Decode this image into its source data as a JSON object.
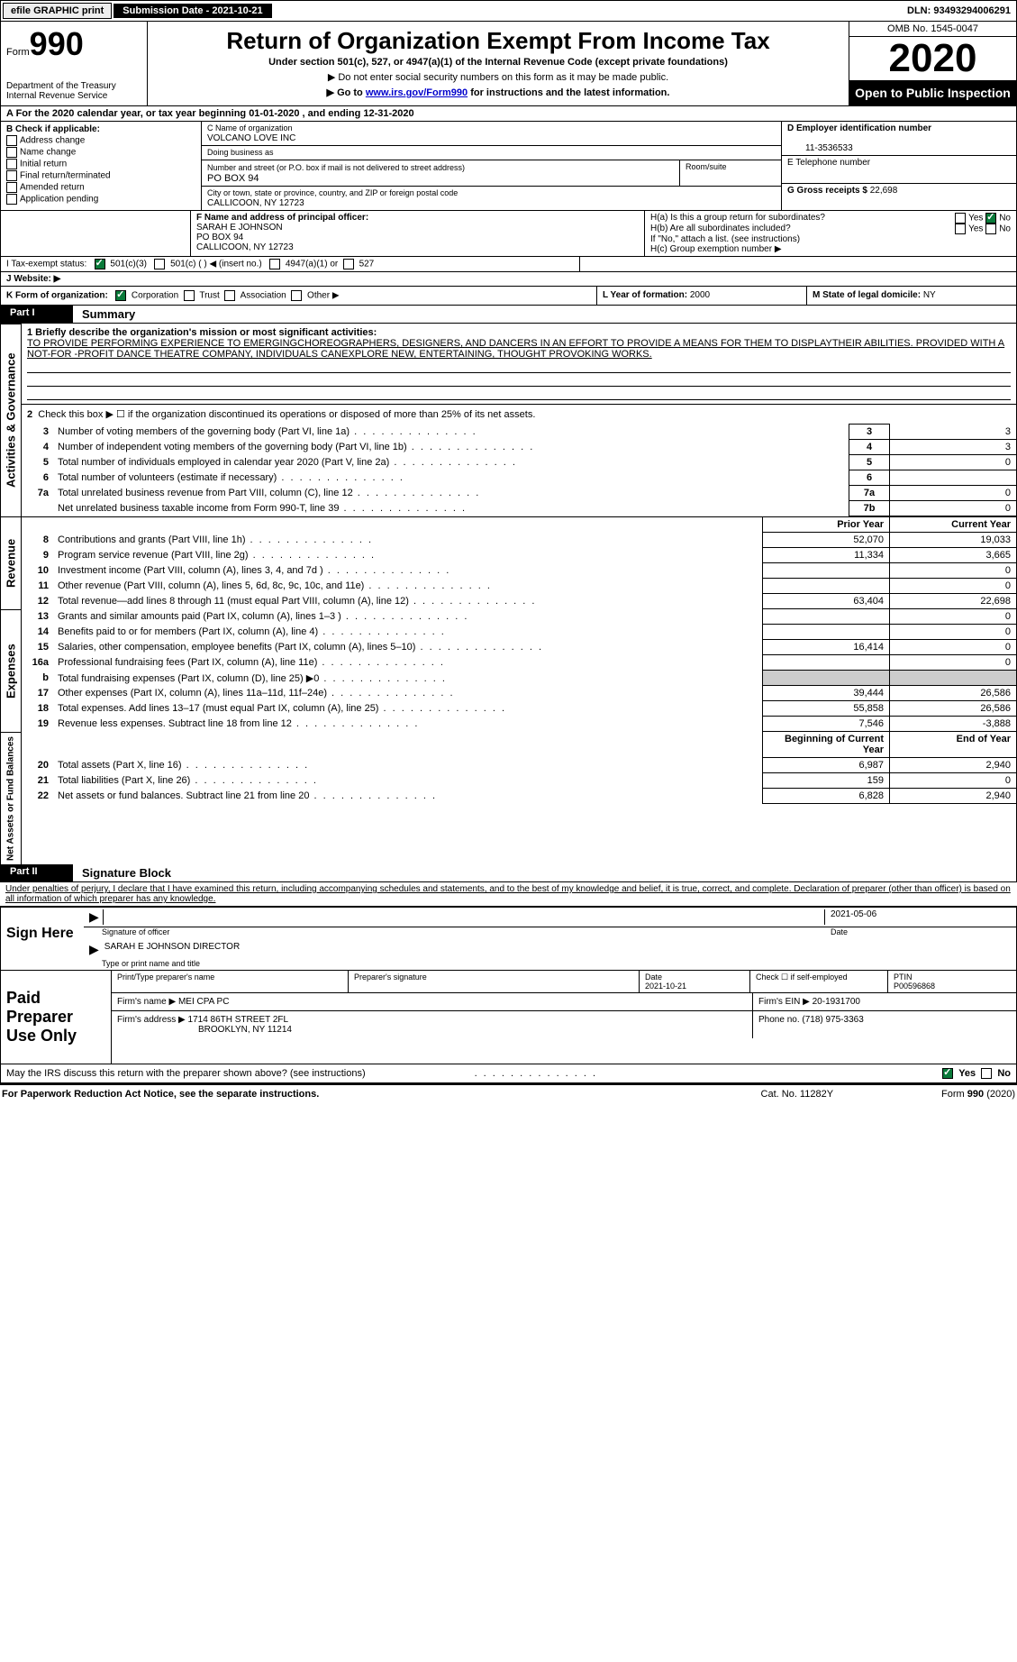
{
  "topbar": {
    "efile": "efile GRAPHIC print",
    "subdate_label": "Submission Date - ",
    "subdate": "2021-10-21",
    "dln_label": "DLN: ",
    "dln": "93493294006291"
  },
  "header": {
    "form_label": "Form",
    "form_num": "990",
    "dept": "Department of the Treasury\nInternal Revenue Service",
    "title": "Return of Organization Exempt From Income Tax",
    "subtitle": "Under section 501(c), 527, or 4947(a)(1) of the Internal Revenue Code (except private foundations)",
    "note1": "▶ Do not enter social security numbers on this form as it may be made public.",
    "note2_pre": "▶ Go to ",
    "note2_link": "www.irs.gov/Form990",
    "note2_post": " for instructions and the latest information.",
    "omb": "OMB No. 1545-0047",
    "year": "2020",
    "public": "Open to Public Inspection"
  },
  "periodA": "A For the 2020 calendar year, or tax year beginning 01-01-2020    , and ending 12-31-2020",
  "boxB": {
    "label": "B Check if applicable:",
    "items": [
      "Address change",
      "Name change",
      "Initial return",
      "Final return/terminated",
      "Amended return",
      "Application pending"
    ]
  },
  "boxC": {
    "c_label": "C Name of organization",
    "org": "VOLCANO LOVE INC",
    "dba_label": "Doing business as",
    "addr_label": "Number and street (or P.O. box if mail is not delivered to street address)",
    "room_label": "Room/suite",
    "addr": "PO BOX 94",
    "city_label": "City or town, state or province, country, and ZIP or foreign postal code",
    "city": "CALLICOON, NY  12723"
  },
  "boxD": {
    "d_label": "D Employer identification number",
    "ein": "11-3536533",
    "e_label": "E Telephone number",
    "g_label": "G Gross receipts $ ",
    "g_val": "22,698"
  },
  "boxF": {
    "f_label": "F  Name and address of principal officer:",
    "name": "SARAH E JOHNSON",
    "addr": "PO BOX 94",
    "city": "CALLICOON, NY  12723"
  },
  "boxH": {
    "ha": "H(a)  Is this a group return for subordinates?",
    "hb": "H(b)  Are all subordinates included?",
    "hnote": "If \"No,\" attach a list. (see instructions)",
    "hc": "H(c)  Group exemption number ▶",
    "yes": "Yes",
    "no": "No"
  },
  "lineI": {
    "label": "I    Tax-exempt status:",
    "opts": [
      "501(c)(3)",
      "501(c) (  ) ◀ (insert no.)",
      "4947(a)(1) or",
      "527"
    ]
  },
  "lineJ": "J   Website: ▶",
  "lineK": {
    "label": "K Form of organization:",
    "opts": [
      "Corporation",
      "Trust",
      "Association",
      "Other ▶"
    ]
  },
  "lineL": {
    "label": "L Year of formation: ",
    "val": "2000"
  },
  "lineM": {
    "label": "M State of legal domicile: ",
    "val": "NY"
  },
  "part1": {
    "num": "Part I",
    "title": "Summary"
  },
  "summary": {
    "l1_label": "1  Briefly describe the organization's mission or most significant activities:",
    "l1_text": "TO PROVIDE PERFORMING EXPERIENCE TO EMERGINGCHOREOGRAPHERS, DESIGNERS, AND DANCERS IN AN EFFORT TO PROVIDE A MEANS FOR THEM TO DISPLAYTHEIR ABILITIES. PROVIDED WITH A NOT-FOR -PROFIT DANCE THEATRE COMPANY, INDIVIDUALS CANEXPLORE NEW, ENTERTAINING, THOUGHT PROVOKING WORKS.",
    "l2": "Check this box ▶ ☐ if the organization discontinued its operations or disposed of more than 25% of its net assets.",
    "rows_box": [
      {
        "n": "3",
        "t": "Number of voting members of the governing body (Part VI, line 1a)",
        "box": "3",
        "v": "3"
      },
      {
        "n": "4",
        "t": "Number of independent voting members of the governing body (Part VI, line 1b)",
        "box": "4",
        "v": "3"
      },
      {
        "n": "5",
        "t": "Total number of individuals employed in calendar year 2020 (Part V, line 2a)",
        "box": "5",
        "v": "0"
      },
      {
        "n": "6",
        "t": "Total number of volunteers (estimate if necessary)",
        "box": "6",
        "v": ""
      },
      {
        "n": "7a",
        "t": "Total unrelated business revenue from Part VIII, column (C), line 12",
        "box": "7a",
        "v": "0"
      },
      {
        "n": "",
        "t": "Net unrelated business taxable income from Form 990-T, line 39",
        "box": "7b",
        "v": "0"
      }
    ],
    "col_prior": "Prior Year",
    "col_curr": "Current Year",
    "revenue": [
      {
        "n": "8",
        "t": "Contributions and grants (Part VIII, line 1h)",
        "p": "52,070",
        "c": "19,033"
      },
      {
        "n": "9",
        "t": "Program service revenue (Part VIII, line 2g)",
        "p": "11,334",
        "c": "3,665"
      },
      {
        "n": "10",
        "t": "Investment income (Part VIII, column (A), lines 3, 4, and 7d )",
        "p": "",
        "c": "0"
      },
      {
        "n": "11",
        "t": "Other revenue (Part VIII, column (A), lines 5, 6d, 8c, 9c, 10c, and 11e)",
        "p": "",
        "c": "0"
      },
      {
        "n": "12",
        "t": "Total revenue—add lines 8 through 11 (must equal Part VIII, column (A), line 12)",
        "p": "63,404",
        "c": "22,698"
      }
    ],
    "expenses": [
      {
        "n": "13",
        "t": "Grants and similar amounts paid (Part IX, column (A), lines 1–3 )",
        "p": "",
        "c": "0"
      },
      {
        "n": "14",
        "t": "Benefits paid to or for members (Part IX, column (A), line 4)",
        "p": "",
        "c": "0"
      },
      {
        "n": "15",
        "t": "Salaries, other compensation, employee benefits (Part IX, column (A), lines 5–10)",
        "p": "16,414",
        "c": "0"
      },
      {
        "n": "16a",
        "t": "Professional fundraising fees (Part IX, column (A), line 11e)",
        "p": "",
        "c": "0"
      },
      {
        "n": "b",
        "t": "Total fundraising expenses (Part IX, column (D), line 25) ▶0",
        "p": "GRAY",
        "c": "GRAY"
      },
      {
        "n": "17",
        "t": "Other expenses (Part IX, column (A), lines 11a–11d, 11f–24e)",
        "p": "39,444",
        "c": "26,586"
      },
      {
        "n": "18",
        "t": "Total expenses. Add lines 13–17 (must equal Part IX, column (A), line 25)",
        "p": "55,858",
        "c": "26,586"
      },
      {
        "n": "19",
        "t": "Revenue less expenses. Subtract line 18 from line 12",
        "p": "7,546",
        "c": "-3,888"
      }
    ],
    "col_beg": "Beginning of Current Year",
    "col_end": "End of Year",
    "net": [
      {
        "n": "20",
        "t": "Total assets (Part X, line 16)",
        "p": "6,987",
        "c": "2,940"
      },
      {
        "n": "21",
        "t": "Total liabilities (Part X, line 26)",
        "p": "159",
        "c": "0"
      },
      {
        "n": "22",
        "t": "Net assets or fund balances. Subtract line 21 from line 20",
        "p": "6,828",
        "c": "2,940"
      }
    ]
  },
  "vtabs": {
    "gov": "Activities & Governance",
    "rev": "Revenue",
    "exp": "Expenses",
    "net": "Net Assets or Fund Balances"
  },
  "part2": {
    "num": "Part II",
    "title": "Signature Block"
  },
  "sig": {
    "decl": "Under penalties of perjury, I declare that I have examined this return, including accompanying schedules and statements, and to the best of my knowledge and belief, it is true, correct, and complete. Declaration of preparer (other than officer) is based on all information of which preparer has any knowledge.",
    "sign_here": "Sign Here",
    "sig_officer": "Signature of officer",
    "date": "Date",
    "sig_date": "2021-05-06",
    "name_title": "SARAH E JOHNSON  DIRECTOR",
    "type_name": "Type or print name and title",
    "paid": "Paid Preparer Use Only",
    "prep_name_label": "Print/Type preparer's name",
    "prep_sig_label": "Preparer's signature",
    "prep_date_label": "Date",
    "prep_date": "2021-10-21",
    "check_self": "Check ☐ if self-employed",
    "ptin_label": "PTIN",
    "ptin": "P00596868",
    "firm_name_label": "Firm's name    ▶ ",
    "firm_name": "MEI CPA PC",
    "firm_ein_label": "Firm's EIN ▶ ",
    "firm_ein": "20-1931700",
    "firm_addr_label": "Firm's address ▶ ",
    "firm_addr": "1714 86TH STREET 2FL",
    "firm_city": "BROOKLYN, NY  11214",
    "phone_label": "Phone no. ",
    "phone": "(718) 975-3363",
    "may_irs": "May the IRS discuss this return with the preparer shown above? (see instructions)"
  },
  "footer": {
    "left": "For Paperwork Reduction Act Notice, see the separate instructions.",
    "mid": "Cat. No. 11282Y",
    "right": "Form 990 (2020)"
  }
}
